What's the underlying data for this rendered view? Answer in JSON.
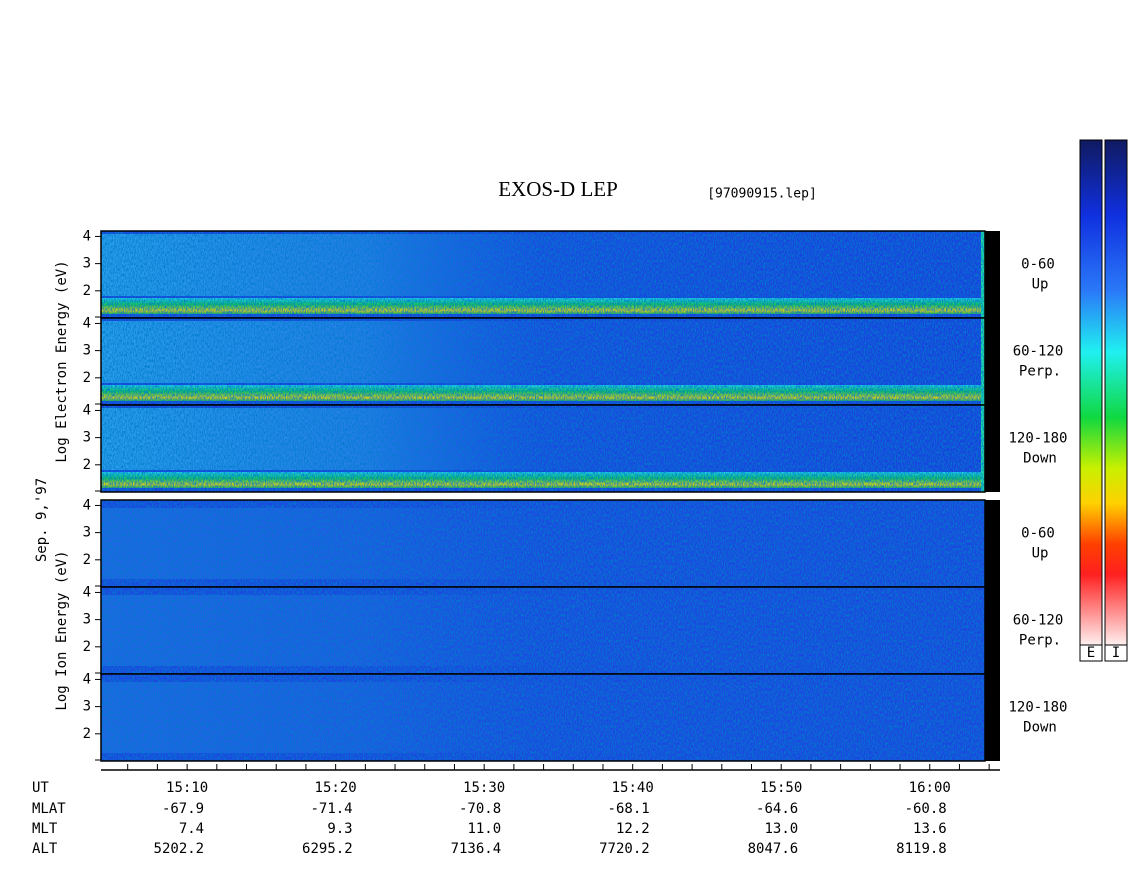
{
  "chart_data": {
    "type": "spectrogram",
    "title": "EXOS-D LEP",
    "file": "[97090915.lep]",
    "date": "Sep. 9,'97",
    "groups": [
      {
        "label": "Log Electron Energy (eV)",
        "panels": [
          {
            "angle": "0-60",
            "direction": "Up",
            "yticks": [
              4,
              3,
              2
            ]
          },
          {
            "angle": "60-120",
            "direction": "Perp.",
            "yticks": [
              4,
              3,
              2
            ]
          },
          {
            "angle": "120-180",
            "direction": "Down",
            "yticks": [
              4,
              3,
              2
            ]
          }
        ]
      },
      {
        "label": "Log Ion Energy (eV)",
        "panels": [
          {
            "angle": "0-60",
            "direction": "Up",
            "yticks": [
              4,
              3,
              2
            ]
          },
          {
            "angle": "60-120",
            "direction": "Perp.",
            "yticks": [
              4,
              3,
              2
            ]
          },
          {
            "angle": "120-180",
            "direction": "Down",
            "yticks": [
              4,
              3,
              2
            ]
          }
        ]
      }
    ],
    "ylim": [
      1,
      4.2
    ],
    "xlim": [
      "15:04",
      "16:05"
    ],
    "xticks": [
      "15:06",
      "15:08",
      "15:10",
      "15:12",
      "15:14",
      "15:16",
      "15:18",
      "15:20",
      "15:22",
      "15:24",
      "15:26",
      "15:28",
      "15:30",
      "15:32",
      "15:34",
      "15:36",
      "15:38",
      "15:40",
      "15:42",
      "15:44",
      "15:46",
      "15:48",
      "15:50",
      "15:52",
      "15:54",
      "15:56",
      "15:58",
      "16:00",
      "16:02",
      "16:04"
    ],
    "ephemeris": [
      {
        "name": "UT",
        "values": [
          "15:10",
          "15:20",
          "15:30",
          "15:40",
          "15:50",
          "16:00"
        ]
      },
      {
        "name": "MLAT",
        "values": [
          "-67.9",
          "-71.4",
          "-70.8",
          "-68.1",
          "-64.6",
          "-60.8"
        ]
      },
      {
        "name": "MLT",
        "values": [
          "7.4",
          "9.3",
          "11.0",
          "12.2",
          "13.0",
          "13.6"
        ]
      },
      {
        "name": "ALT",
        "values": [
          "5202.2",
          "6295.2",
          "7136.4",
          "7720.2",
          "8047.6",
          "8119.8"
        ]
      }
    ],
    "colorbars": [
      "E",
      "I"
    ]
  }
}
